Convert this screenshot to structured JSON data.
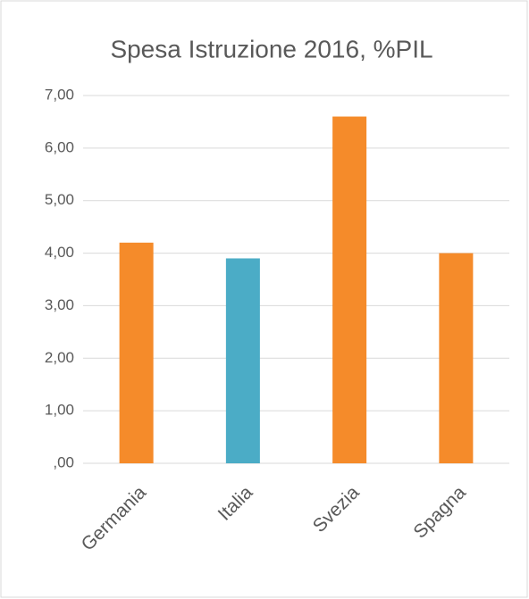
{
  "chart_data": {
    "type": "bar",
    "title": "Spesa Istruzione 2016, %PIL",
    "categories": [
      "Germania",
      "Italia",
      "Svezia",
      "Spagna"
    ],
    "values": [
      4.2,
      3.9,
      6.6,
      4.0
    ],
    "colors": [
      "#f58b2a",
      "#4bacc6",
      "#f58b2a",
      "#f58b2a"
    ],
    "ylim": [
      0,
      7
    ],
    "yticks": [
      {
        "value": 0,
        "label": ",00"
      },
      {
        "value": 1,
        "label": "1,00"
      },
      {
        "value": 2,
        "label": "2,00"
      },
      {
        "value": 3,
        "label": "3,00"
      },
      {
        "value": 4,
        "label": "4,00"
      },
      {
        "value": 5,
        "label": "5,00"
      },
      {
        "value": 6,
        "label": "6,00"
      },
      {
        "value": 7,
        "label": "7,00"
      }
    ],
    "grid": true
  }
}
